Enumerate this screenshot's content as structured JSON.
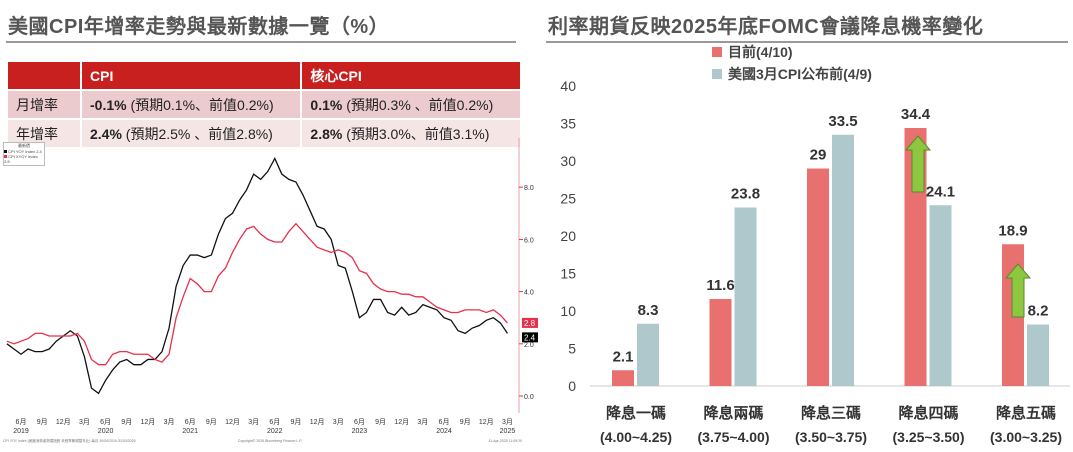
{
  "left_title": "美國CPI年增率走勢與最新數據一覽（%）",
  "right_title": "利率期貨反映2025年底FOMC會議降息機率變化",
  "table": {
    "headers": [
      "",
      "CPI",
      "核心CPI"
    ],
    "rows": [
      {
        "label": "月增率",
        "cpi_bold": "-0.1%",
        "cpi_note": " (預期0.1%、前值0.2%)",
        "core_bold": "0.1%",
        "core_note": " (預期0.3% 、前值0.2%)"
      },
      {
        "label": "年增率",
        "cpi_bold": "2.4%",
        "cpi_note": " (預期2.5% 、前值2.8%)",
        "core_bold": "2.8%",
        "core_note": " (預期3.0%、前值3.1%)"
      }
    ]
  },
  "chart_data": [
    {
      "type": "line",
      "title": "",
      "legend_title": "最新價",
      "legend": [
        "CPI YOY Index  2.4",
        "CPI XYOY Index 2.8"
      ],
      "start_month": "2019-04",
      "ylim": [
        -0.5,
        9.5
      ],
      "yticks": [
        "0.0",
        "2.0",
        "4.0",
        "6.0",
        "8.0"
      ],
      "xtick_months": [
        "6月",
        "9月",
        "12月",
        "3月",
        "6月",
        "9月",
        "12月",
        "3月",
        "6月",
        "9月",
        "12月",
        "3月",
        "6月",
        "9月",
        "12月",
        "3月",
        "6月",
        "9月",
        "12月",
        "3月",
        "6月",
        "9月",
        "12月",
        "3月"
      ],
      "years": [
        "2019",
        "2020",
        "2021",
        "2022",
        "2023",
        "2024",
        "2025"
      ],
      "end_labels": [
        "2.8",
        "2.4"
      ],
      "footer_left": "CPI YOY Index (美國消費者物價指數 未經季節調整年比)  每月 30/04/2019-31/03/2025",
      "footer_mid": "Copyright© 2025 Bloomberg Finance L.P.",
      "footer_right": "11-Apr-2025 11:09:20",
      "series": [
        {
          "name": "CPI YOY Index",
          "color": "#111111",
          "values": [
            2.0,
            1.8,
            1.6,
            1.8,
            1.7,
            1.7,
            1.8,
            2.1,
            2.3,
            2.5,
            2.3,
            1.5,
            0.3,
            0.1,
            0.6,
            1.0,
            1.3,
            1.4,
            1.2,
            1.2,
            1.4,
            1.4,
            1.7,
            2.6,
            4.2,
            5.0,
            5.4,
            5.4,
            5.3,
            5.4,
            6.2,
            6.8,
            7.0,
            7.5,
            7.9,
            8.5,
            8.3,
            8.6,
            9.1,
            8.5,
            8.3,
            8.2,
            7.7,
            7.1,
            6.5,
            6.4,
            6.0,
            5.0,
            4.9,
            4.0,
            3.0,
            3.2,
            3.7,
            3.7,
            3.2,
            3.1,
            3.4,
            3.1,
            3.2,
            3.5,
            3.4,
            3.3,
            3.0,
            2.9,
            2.5,
            2.4,
            2.6,
            2.7,
            2.9,
            3.0,
            2.8,
            2.4
          ]
        },
        {
          "name": "CPI XYOY Index",
          "color": "#e8304a",
          "values": [
            2.1,
            2.0,
            2.1,
            2.2,
            2.4,
            2.4,
            2.3,
            2.3,
            2.3,
            2.3,
            2.4,
            2.1,
            1.4,
            1.2,
            1.2,
            1.6,
            1.7,
            1.7,
            1.6,
            1.6,
            1.6,
            1.4,
            1.3,
            1.6,
            3.0,
            3.8,
            4.5,
            4.3,
            4.0,
            4.0,
            4.6,
            4.9,
            5.5,
            6.0,
            6.4,
            6.5,
            6.2,
            6.0,
            5.9,
            5.9,
            6.3,
            6.6,
            6.3,
            6.0,
            5.7,
            5.6,
            5.5,
            5.6,
            5.5,
            5.3,
            4.8,
            4.7,
            4.3,
            4.1,
            4.0,
            4.0,
            3.9,
            3.9,
            3.8,
            3.8,
            3.6,
            3.4,
            3.3,
            3.2,
            3.2,
            3.3,
            3.3,
            3.3,
            3.2,
            3.3,
            3.1,
            2.8
          ]
        }
      ]
    },
    {
      "type": "bar",
      "title": "利率期貨反映2025年底FOMC會議降息機率變化",
      "categories": [
        "降息一碼",
        "降息兩碼",
        "降息三碼",
        "降息四碼",
        "降息五碼"
      ],
      "category_ranges": [
        "(4.00~4.25)",
        "(3.75~4.00)",
        "(3.50~3.75)",
        "(3.25~3.50)",
        "(3.00~3.25)"
      ],
      "ylim": [
        0,
        40
      ],
      "yticks": [
        0,
        5,
        10,
        15,
        20,
        25,
        30,
        35,
        40
      ],
      "legend_position": "top-left",
      "series": [
        {
          "name": "目前(4/10)",
          "color": "#e8706e",
          "values": [
            2.1,
            11.6,
            29,
            34.4,
            18.9
          ]
        },
        {
          "name": "美國3月CPI公布前(4/9)",
          "color": "#afc8cc",
          "values": [
            8.3,
            23.8,
            33.5,
            24.1,
            8.2
          ]
        }
      ],
      "annotations": [
        {
          "type": "up-arrow",
          "category": "降息四碼"
        },
        {
          "type": "up-arrow",
          "category": "降息五碼"
        }
      ]
    }
  ]
}
